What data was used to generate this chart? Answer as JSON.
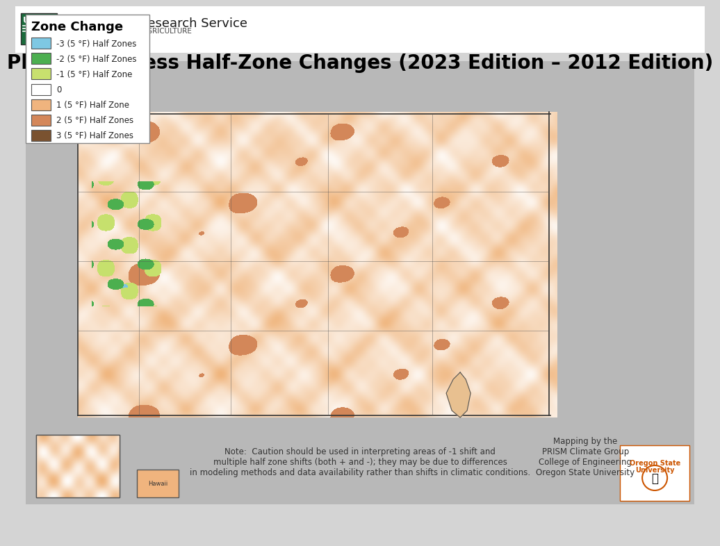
{
  "title": "Plant Hardiness Half-Zone Changes (2023 Edition – 2012 Edition)",
  "title_fontsize": 20,
  "title_fontweight": "bold",
  "background_color": "#c8e8f0",
  "figure_bg": "#d4d4d4",
  "header_agency": "Agricultural Research Service",
  "header_dept": "U.S. DEPARTMENT OF AGRICULTURE",
  "legend_title": "Zone Change",
  "legend_items": [
    {
      "label": "-3 (5 °F) Half Zones",
      "color": "#7ec8e3"
    },
    {
      "label": "-2 (5 °F) Half Zones",
      "color": "#4caf50"
    },
    {
      "label": "-1 (5 °F) Half Zone",
      "color": "#c8e06e"
    },
    {
      "label": "0",
      "color": "#ffffff"
    },
    {
      "label": "1 (5 °F) Half Zone",
      "color": "#f0b47e"
    },
    {
      "label": "2 (5 °F) Half Zones",
      "color": "#d4875a"
    },
    {
      "label": "3 (5 °F) Half Zones",
      "color": "#7a5230"
    }
  ],
  "note_text": "Note:  Caution should be used in interpreting areas of -1 shift and\nmultiple half zone shifts (both + and -); they may be due to differences\nin modeling methods and data availability rather than shifts in climatic conditions.",
  "credit_text": "Mapping by the\nPRISM Climate Group\nCollege of Engineering\nOregon State University",
  "map_bg": "#c8e8f0",
  "land_color": "#c8c8c8",
  "us_fill": "#f5deb3",
  "border_color": "#555555",
  "ocean_color": "#a8d8ea"
}
